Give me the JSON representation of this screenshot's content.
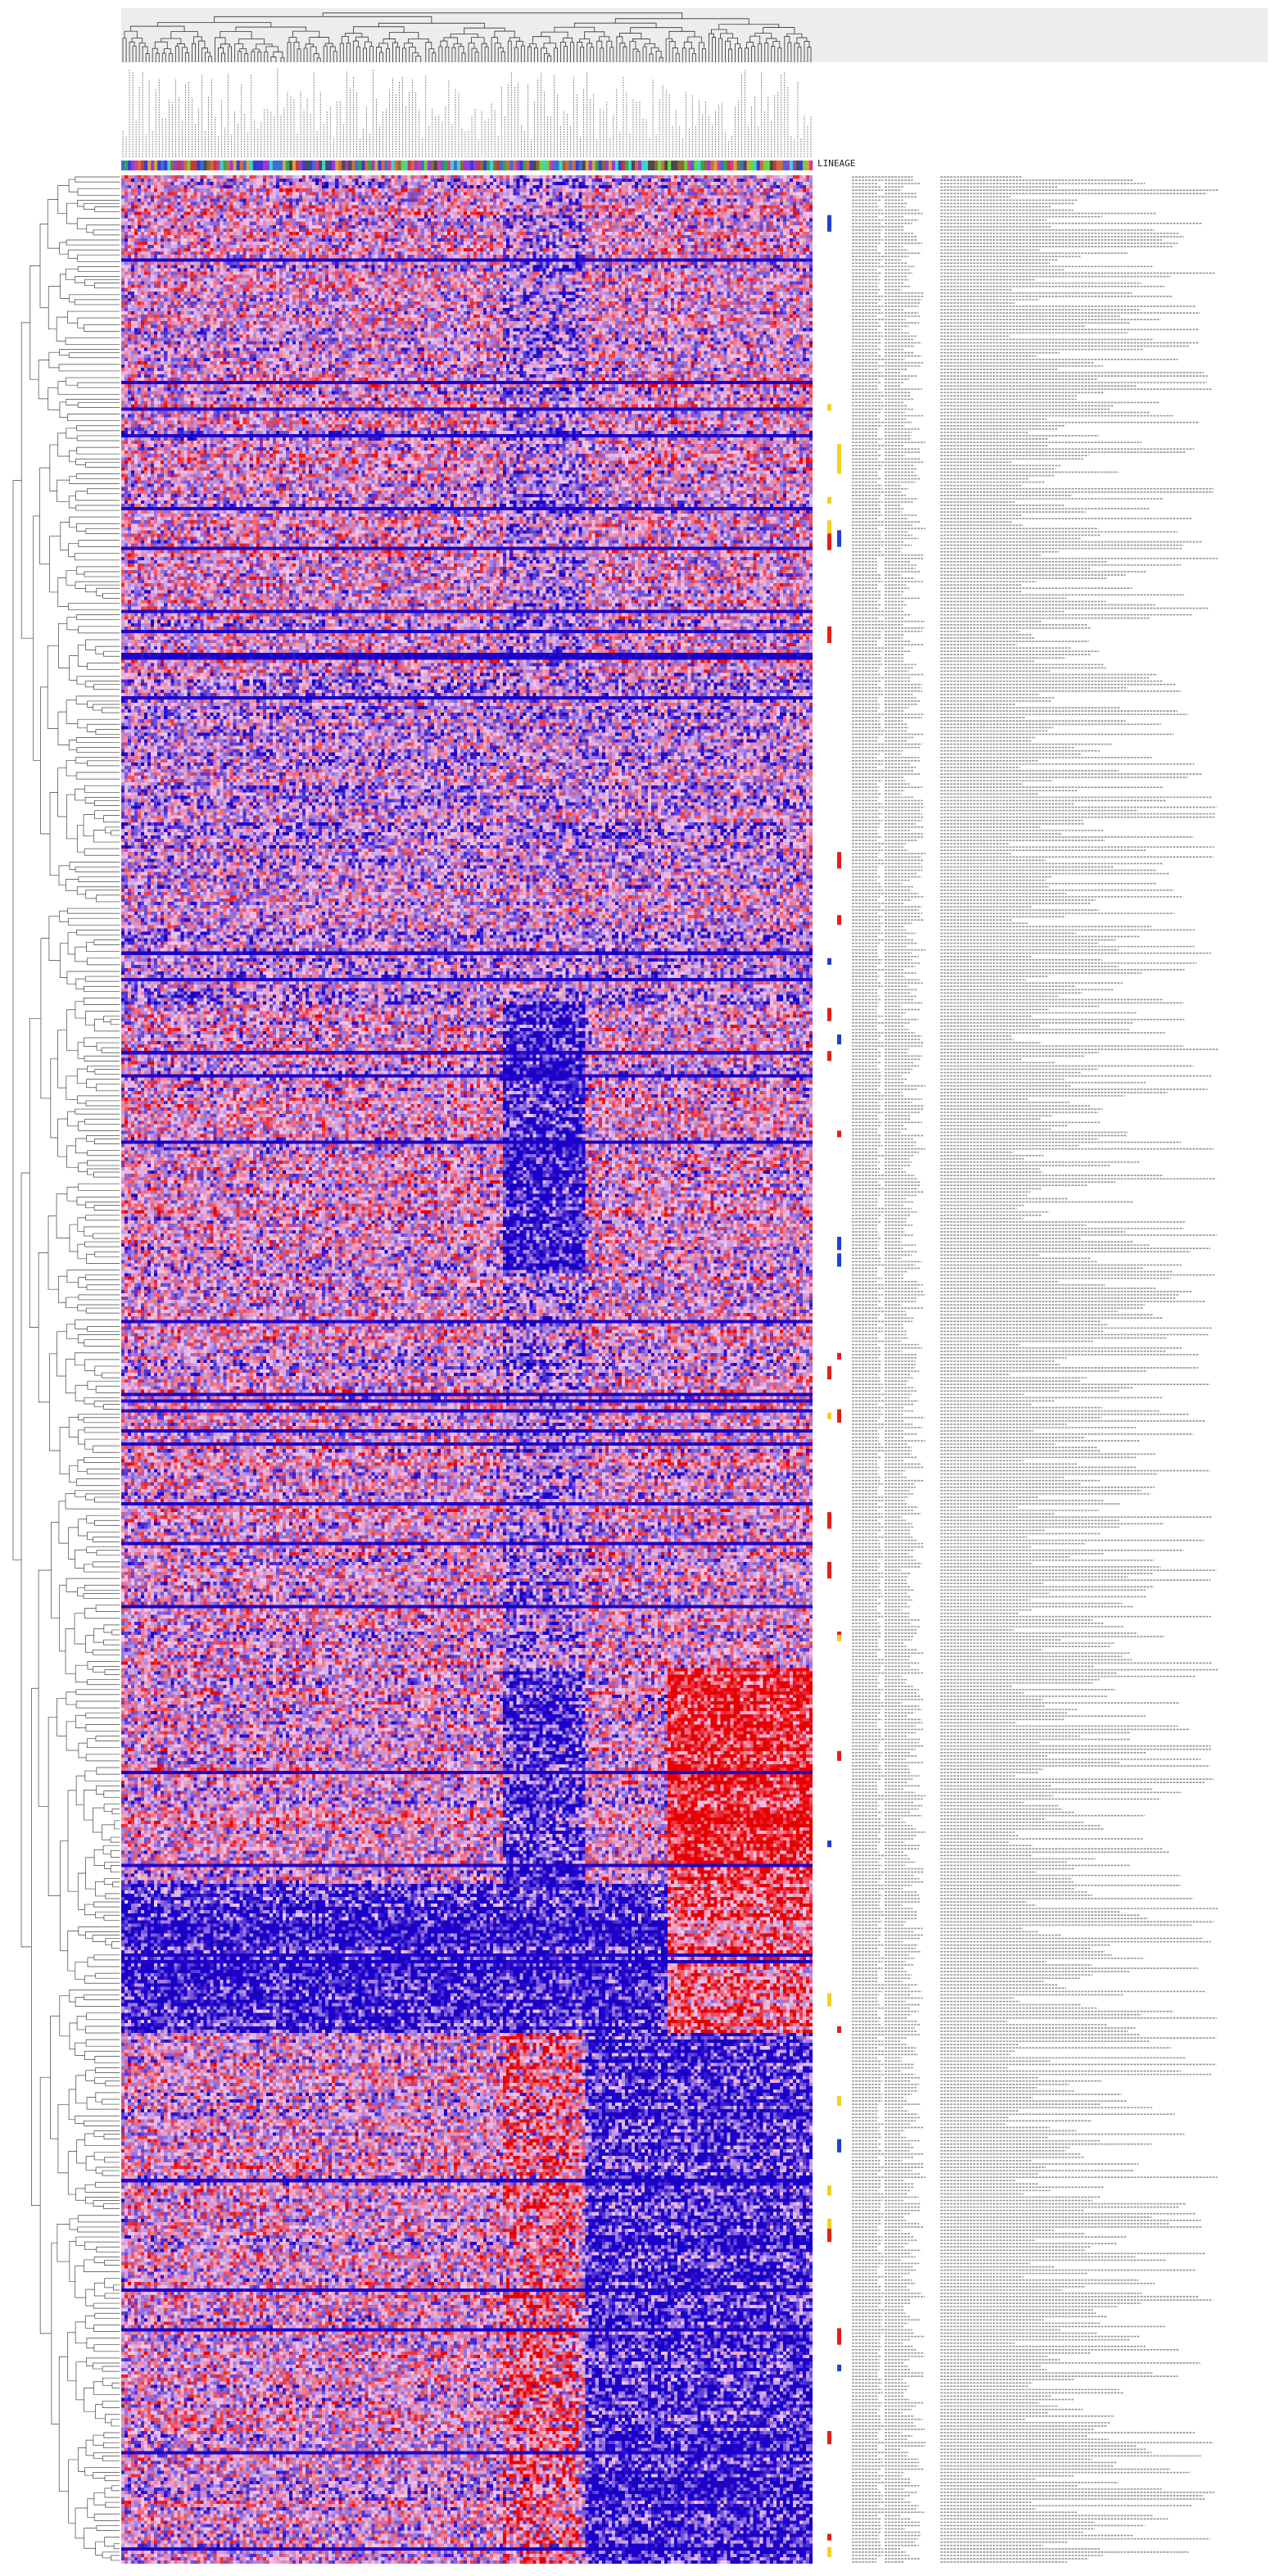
{
  "chart_data": {
    "type": "heatmap",
    "title": "",
    "xlabel": "",
    "ylabel": "",
    "n_columns": 210,
    "n_rows": 720,
    "color_scale": {
      "low": "#1a00c8",
      "mid": "#f3c8f0",
      "high": "#e60000"
    },
    "lineage_track_label": "LINEAGE",
    "lineage_palette": [
      "#4b4b4b",
      "#c43a3a",
      "#3a6fd6",
      "#2fa84f",
      "#d6a33a",
      "#9b3ad6",
      "#3ad6c9",
      "#d63a9b",
      "#8a6a3a",
      "#6ad63a",
      "#d66a3a",
      "#3a3ad6"
    ],
    "annotation_track_colors": [
      "#e0201a",
      "#f4d020",
      "#2040d0"
    ],
    "row_bands": [
      {
        "from": 0,
        "to": 150,
        "pattern": "mixed"
      },
      {
        "from": 150,
        "to": 250,
        "pattern": "mixed-low"
      },
      {
        "from": 250,
        "to": 330,
        "pattern": "low-center"
      },
      {
        "from": 330,
        "to": 450,
        "pattern": "mixed"
      },
      {
        "from": 450,
        "to": 515,
        "pattern": "high-right"
      },
      {
        "from": 515,
        "to": 560,
        "pattern": "low-strong"
      },
      {
        "from": 560,
        "to": 720,
        "pattern": "low-right"
      }
    ],
    "row_labels_visible": false,
    "grid": false,
    "legend": "none"
  },
  "lineage": {
    "label": "LINEAGE"
  }
}
